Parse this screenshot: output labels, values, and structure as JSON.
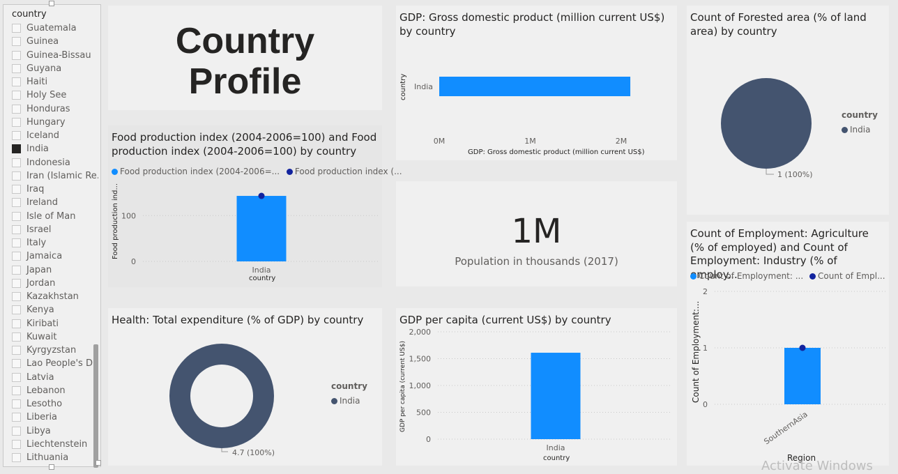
{
  "slicer": {
    "header": "country",
    "items": [
      {
        "label": "Guatemala",
        "checked": false
      },
      {
        "label": "Guinea",
        "checked": false
      },
      {
        "label": "Guinea-Bissau",
        "checked": false
      },
      {
        "label": "Guyana",
        "checked": false
      },
      {
        "label": "Haiti",
        "checked": false
      },
      {
        "label": "Holy See",
        "checked": false
      },
      {
        "label": "Honduras",
        "checked": false
      },
      {
        "label": "Hungary",
        "checked": false
      },
      {
        "label": "Iceland",
        "checked": false
      },
      {
        "label": "India",
        "checked": true
      },
      {
        "label": "Indonesia",
        "checked": false
      },
      {
        "label": "Iran (Islamic Re...",
        "checked": false
      },
      {
        "label": "Iraq",
        "checked": false
      },
      {
        "label": "Ireland",
        "checked": false
      },
      {
        "label": "Isle of Man",
        "checked": false
      },
      {
        "label": "Israel",
        "checked": false
      },
      {
        "label": "Italy",
        "checked": false
      },
      {
        "label": "Jamaica",
        "checked": false
      },
      {
        "label": "Japan",
        "checked": false
      },
      {
        "label": "Jordan",
        "checked": false
      },
      {
        "label": "Kazakhstan",
        "checked": false
      },
      {
        "label": "Kenya",
        "checked": false
      },
      {
        "label": "Kiribati",
        "checked": false
      },
      {
        "label": "Kuwait",
        "checked": false
      },
      {
        "label": "Kyrgyzstan",
        "checked": false
      },
      {
        "label": "Lao People's D...",
        "checked": false
      },
      {
        "label": "Latvia",
        "checked": false
      },
      {
        "label": "Lebanon",
        "checked": false
      },
      {
        "label": "Lesotho",
        "checked": false
      },
      {
        "label": "Liberia",
        "checked": false
      },
      {
        "label": "Libya",
        "checked": false
      },
      {
        "label": "Liechtenstein",
        "checked": false
      },
      {
        "label": "Lithuania",
        "checked": false
      }
    ]
  },
  "title_card": {
    "line1": "Country",
    "line2": "Profile"
  },
  "population_card": {
    "value": "1M",
    "label": "Population in thousands (2017)"
  },
  "watermark": "Activate Windows",
  "colors": {
    "bar": "#118dff",
    "marker": "#12239e",
    "pie": "#44546f",
    "card_bg": "#f0f0f0",
    "page_bg": "#e9e9e9"
  },
  "chart_data": [
    {
      "id": "food",
      "type": "bar",
      "title": "Food production index (2004-2006=100) and Food production index (2004-2006=100) by country",
      "legend": [
        "Food production index (2004-2006=...",
        "Food production index (..."
      ],
      "categories": [
        "India"
      ],
      "series": [
        {
          "name": "Food production index (2004-2006=...",
          "kind": "bar",
          "values": [
            143
          ]
        },
        {
          "name": "Food production index (...",
          "kind": "marker",
          "values": [
            143
          ]
        }
      ],
      "xlabel": "country",
      "ylabel": "Food production ind...",
      "ylim": [
        0,
        175
      ],
      "yticks": [
        {
          "v": 0,
          "label": "0"
        },
        {
          "v": 100,
          "label": "100"
        }
      ],
      "grid": true
    },
    {
      "id": "gdp",
      "type": "bar",
      "orientation": "horizontal",
      "title": "GDP: Gross domestic product (million current US$) by country",
      "categories": [
        "India"
      ],
      "values": [
        2100000
      ],
      "xlabel": "GDP: Gross domestic product (million current US$)",
      "ylabel": "country",
      "xlim": [
        0,
        2000000
      ],
      "xticks": [
        {
          "v": 0,
          "label": "0M"
        },
        {
          "v": 1000000,
          "label": "1M"
        },
        {
          "v": 2000000,
          "label": "2M"
        }
      ]
    },
    {
      "id": "forest",
      "type": "pie",
      "title": "Count of Forested area (% of land area) by country",
      "legend_title": "country",
      "slices": [
        {
          "label": "India",
          "value": 1,
          "display": "1 (100%)"
        }
      ]
    },
    {
      "id": "health",
      "type": "pie",
      "variant": "donut",
      "title": "Health: Total expenditure (% of GDP) by country",
      "legend_title": "country",
      "slices": [
        {
          "label": "India",
          "value": 4.7,
          "display": "4.7 (100%)"
        }
      ]
    },
    {
      "id": "gdppc",
      "type": "bar",
      "title": "GDP per capita (current US$) by country",
      "categories": [
        "India"
      ],
      "values": [
        1610
      ],
      "xlabel": "country",
      "ylabel": "GDP per capita (current US$)",
      "ylim": [
        0,
        2000
      ],
      "yticks": [
        {
          "v": 0,
          "label": "0"
        },
        {
          "v": 500,
          "label": "500"
        },
        {
          "v": 1000,
          "label": "1,000"
        },
        {
          "v": 1500,
          "label": "1,500"
        },
        {
          "v": 2000,
          "label": "2,000"
        }
      ],
      "grid": true
    },
    {
      "id": "employment",
      "type": "bar",
      "title": "Count of Employment: Agriculture (% of employed) and Count of Employment: Industry (% of employ...",
      "legend": [
        "Count of Employment: ...",
        "Count of Empl..."
      ],
      "categories": [
        "SouthernAsia"
      ],
      "series": [
        {
          "name": "Count of Employment: ...",
          "kind": "bar",
          "values": [
            1
          ]
        },
        {
          "name": "Count of Empl...",
          "kind": "marker",
          "values": [
            1
          ]
        }
      ],
      "xlabel": "Region",
      "ylabel": "Count of Employment:...",
      "ylim": [
        0,
        2
      ],
      "yticks": [
        {
          "v": 0,
          "label": "0"
        },
        {
          "v": 1,
          "label": "1"
        },
        {
          "v": 2,
          "label": "2"
        }
      ],
      "grid": true
    }
  ]
}
